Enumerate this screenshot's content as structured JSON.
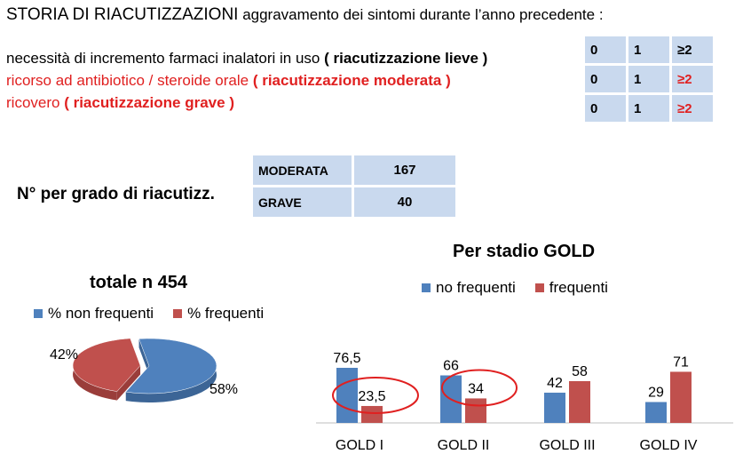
{
  "header": {
    "title": "STORIA DI RIACUTIZZAZIONI",
    "subtitle": "aggravamento dei sintomi durante l’anno precedente :"
  },
  "criteria": [
    {
      "text": "necessità di incremento farmaci inalatori in uso",
      "label": "( riacutizzazione lieve )"
    },
    {
      "text": "ricorso ad antibiotico / steroide orale",
      "label": "( riacutizzazione moderata )"
    },
    {
      "text": "ricovero",
      "label": "( riacutizzazione grave )"
    }
  ],
  "score_table": [
    [
      "0",
      "1",
      "≥2"
    ],
    [
      "0",
      "1",
      "≥2"
    ],
    [
      "0",
      "1",
      "≥2"
    ]
  ],
  "grade_label": "N° per grado di riacutizz.",
  "grade_table": [
    {
      "grade": "MODERATA",
      "count": "167"
    },
    {
      "grade": "GRAVE",
      "count": "40"
    }
  ],
  "colors": {
    "blue": "#4f81bd",
    "red": "#c0504d",
    "alert": "#e02020",
    "table_bg": "#c9d9ee"
  },
  "chart_data": [
    {
      "type": "pie",
      "title": "totale n 454",
      "legend_position": "top",
      "labels": [
        "% non frequenti",
        "% frequenti"
      ],
      "values": [
        58,
        42
      ],
      "data_labels": [
        "58%",
        "42%"
      ]
    },
    {
      "type": "bar",
      "title": "Per stadio GOLD",
      "legend_position": "top",
      "categories": [
        "GOLD I",
        "GOLD II",
        "GOLD III",
        "GOLD IV"
      ],
      "series": [
        {
          "name": "no frequenti",
          "values": [
            76.5,
            66,
            42,
            29
          ],
          "labels": [
            "76,5",
            "66",
            "42",
            "29"
          ]
        },
        {
          "name": "frequenti",
          "values": [
            23.5,
            34,
            58,
            71
          ],
          "labels": [
            "23,5",
            "34",
            "58",
            "71"
          ]
        }
      ],
      "ylim": [
        0,
        100
      ],
      "highlighted": [
        "23,5",
        "34"
      ]
    }
  ]
}
